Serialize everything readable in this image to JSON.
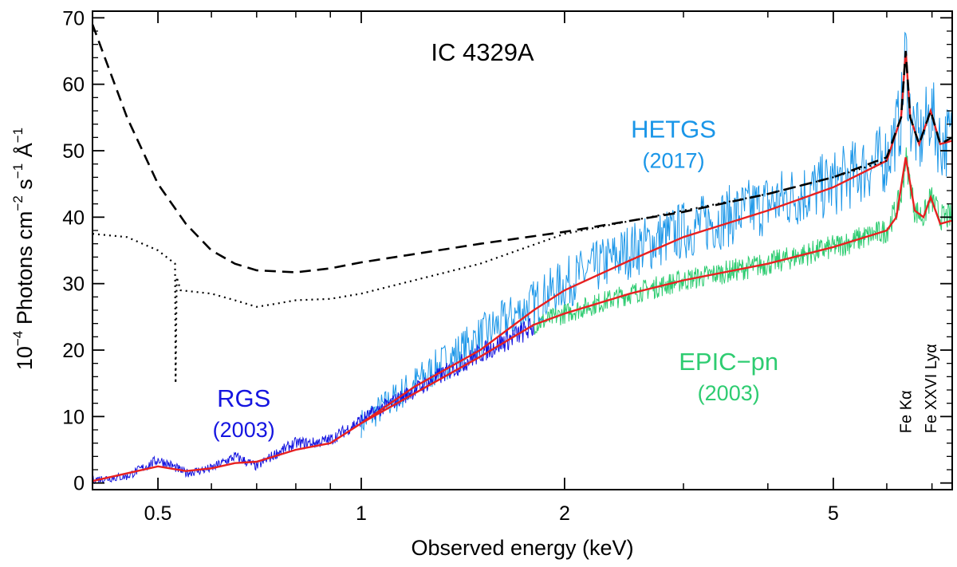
{
  "chart_data": {
    "type": "line",
    "title": "IC 4329A",
    "xlabel": "Observed energy (keV)",
    "ylabel": {
      "prefix": "10",
      "exp1": "−4",
      "mid1": " Photons cm",
      "exp2": "−2",
      "mid2": " s",
      "exp3": "−1",
      "mid3": " Å",
      "exp4": "−1"
    },
    "xscale": "log",
    "xlim": [
      0.4,
      7.5
    ],
    "ylim": [
      -1,
      71
    ],
    "xticks_major": [
      {
        "value": 0.5,
        "label": "0.5"
      },
      {
        "value": 1,
        "label": "1"
      },
      {
        "value": 2,
        "label": "2"
      },
      {
        "value": 5,
        "label": "5"
      }
    ],
    "xticks_minor": [
      0.4,
      0.6,
      0.7,
      0.8,
      0.9,
      3,
      4,
      6,
      7
    ],
    "yticks": [
      {
        "value": 0,
        "label": "0"
      },
      {
        "value": 10,
        "label": "10"
      },
      {
        "value": 20,
        "label": "20"
      },
      {
        "value": 30,
        "label": "30"
      },
      {
        "value": 40,
        "label": "40"
      },
      {
        "value": 50,
        "label": "50"
      },
      {
        "value": 60,
        "label": "60"
      },
      {
        "value": 70,
        "label": "70"
      }
    ],
    "annotations": [
      {
        "id": "hetgs",
        "text": "HETGS",
        "year": "(2017)",
        "color": "#1a96e8",
        "x": 2.9,
        "y": 52
      },
      {
        "id": "epic",
        "text": "EPIC−pn",
        "year": "(2003)",
        "color": "#2ecc71",
        "x": 3.5,
        "y": 17
      },
      {
        "id": "rgs",
        "text": "RGS",
        "year": "(2003)",
        "color": "#1515e0",
        "x": 0.67,
        "y": 11.5
      }
    ],
    "line_labels": [
      {
        "id": "fe-ka",
        "text": "Fe Kα",
        "x": 6.4,
        "y": 7.5
      },
      {
        "id": "fe-xxvi",
        "text": "Fe XXVI Lyα",
        "x": 6.97,
        "y": 7.5
      }
    ],
    "series": [
      {
        "name": "HETGS (2017)",
        "color": "#1a96e8",
        "style": "noisy",
        "x": [
          1.0,
          1.2,
          1.5,
          1.8,
          2.0,
          2.5,
          3.0,
          4.0,
          5.0,
          6.0,
          6.3,
          6.4,
          6.5,
          6.7,
          6.97,
          7.2,
          7.5
        ],
        "y": [
          9,
          15,
          22,
          27,
          30,
          35,
          38,
          42,
          45,
          49,
          55,
          65,
          55,
          51,
          56,
          51,
          52
        ]
      },
      {
        "name": "EPIC-pn (2003)",
        "color": "#2ecc71",
        "style": "noisy",
        "x": [
          1.8,
          2.0,
          2.5,
          3.0,
          4.0,
          5.0,
          6.0,
          6.3,
          6.4,
          6.6,
          6.8,
          6.97,
          7.2,
          7.5
        ],
        "y": [
          23.8,
          25.5,
          28.5,
          30.5,
          33,
          35.5,
          38,
          43,
          49,
          41,
          40,
          43,
          40,
          40
        ]
      },
      {
        "name": "RGS (2003)",
        "color": "#1515e0",
        "style": "noisy",
        "x": [
          0.4,
          0.45,
          0.5,
          0.52,
          0.55,
          0.6,
          0.65,
          0.7,
          0.75,
          0.8,
          0.85,
          0.9,
          0.95,
          1.0,
          1.2,
          1.5,
          1.8
        ],
        "y": [
          0.5,
          1.0,
          3.5,
          2.8,
          1.5,
          2.2,
          4,
          2.5,
          4.5,
          6,
          6,
          6.5,
          8,
          9.5,
          14,
          19.5,
          23.5
        ]
      },
      {
        "name": "model",
        "color": "#e82020",
        "style": "solid",
        "x": [
          0.4,
          0.5,
          0.55,
          0.6,
          0.65,
          0.7,
          0.8,
          0.9,
          1.0,
          1.2,
          1.5,
          1.8,
          2.0,
          2.5,
          3.0,
          4.0,
          5.0,
          6.0,
          6.3,
          6.4,
          6.5,
          6.7,
          6.97,
          7.2,
          7.5
        ],
        "y": [
          0.3,
          2.5,
          1.8,
          2.2,
          3.0,
          3.2,
          5.0,
          6.0,
          9.0,
          14.5,
          20.0,
          26.0,
          29.0,
          33.5,
          37.0,
          41.0,
          44.5,
          48.5,
          55.0,
          65.0,
          55.0,
          51.0,
          56.0,
          51.0,
          51.5
        ]
      },
      {
        "name": "model-2003",
        "color": "#e82020",
        "style": "solid",
        "x": [
          1.0,
          1.2,
          1.5,
          1.8,
          2.0,
          2.5,
          3.0,
          4.0,
          5.0,
          6.0,
          6.2,
          6.4,
          6.6,
          6.8,
          6.97,
          7.2,
          7.5
        ],
        "y": [
          9.0,
          13.5,
          19.0,
          23.8,
          25.5,
          28.5,
          30.5,
          33.0,
          35.5,
          38.0,
          40.0,
          49.0,
          41.0,
          40.0,
          43.0,
          39.0,
          39.5
        ]
      },
      {
        "name": "intrinsic continuum (dashed)",
        "color": "#000000",
        "style": "dashed",
        "x": [
          0.4,
          0.45,
          0.5,
          0.55,
          0.6,
          0.65,
          0.7,
          0.8,
          0.9,
          1.0,
          1.5,
          2.0,
          3.0,
          4.0,
          5.0,
          6.0,
          6.3,
          6.4,
          6.5,
          6.7,
          6.97,
          7.2,
          7.5
        ],
        "y": [
          69,
          55,
          45,
          39,
          35,
          33,
          32,
          31.7,
          32.3,
          33.2,
          36,
          37.8,
          40.8,
          43.5,
          46,
          49,
          55,
          65,
          55,
          51,
          56,
          51,
          52
        ]
      },
      {
        "name": "absorbed continuum (dotted)",
        "color": "#000000",
        "style": "dotted",
        "x": [
          0.4,
          0.45,
          0.5,
          0.53,
          0.531,
          0.533,
          0.54,
          0.6,
          0.65,
          0.7,
          0.75,
          0.8,
          0.9,
          1.0,
          1.5,
          2.0,
          3.0,
          4.0,
          5.0,
          6.0
        ],
        "y": [
          37.5,
          37,
          35,
          33,
          15,
          31,
          29,
          28.5,
          27.5,
          26.5,
          27,
          27.5,
          27.7,
          28.5,
          33,
          37.5,
          41,
          43.5,
          46,
          48.5
        ]
      }
    ]
  }
}
